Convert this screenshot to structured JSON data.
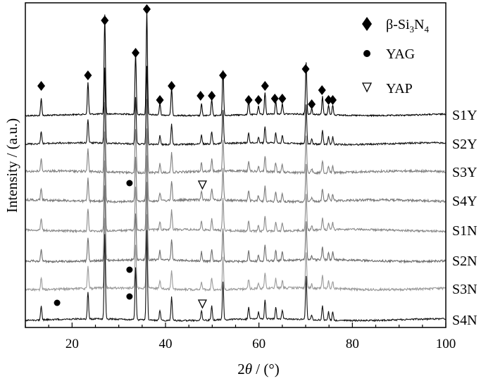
{
  "chart_data": {
    "type": "line",
    "title": "",
    "xlabel_parts": [
      "2",
      "θ",
      " / (°)"
    ],
    "ylabel": "Intensity / (a.u.)",
    "xlim": [
      10,
      100
    ],
    "xticks": [
      20,
      40,
      60,
      80,
      100
    ],
    "grid": false,
    "legend_position": "top-right",
    "legend": [
      {
        "symbol": "diamond",
        "label_parts": [
          "β-Si",
          "3",
          "N",
          "4"
        ]
      },
      {
        "symbol": "circle",
        "label_parts": [
          "YAG"
        ]
      },
      {
        "symbol": "triangle-down-open",
        "label_parts": [
          "YAP"
        ]
      }
    ],
    "peak_positions_2theta": [
      13.4,
      23.4,
      27.0,
      33.6,
      36.0,
      38.8,
      41.3,
      47.7,
      49.9,
      52.3,
      57.8,
      59.9,
      61.3,
      63.6,
      65.0,
      70.1,
      71.3,
      73.6,
      74.9,
      75.8
    ],
    "peak_relative_intensity": [
      0.17,
      0.32,
      1.0,
      0.62,
      1.05,
      0.12,
      0.28,
      0.12,
      0.17,
      0.45,
      0.14,
      0.08,
      0.22,
      0.14,
      0.11,
      0.52,
      0.06,
      0.18,
      0.1,
      0.1
    ],
    "series": [
      {
        "name": "S1Y",
        "color": "#000000",
        "peak_scale": 1.0,
        "noise": 0.6
      },
      {
        "name": "S2Y",
        "color": "#111111",
        "peak_scale": 0.75,
        "noise": 0.7
      },
      {
        "name": "S3Y",
        "color": "#808080",
        "peak_scale": 0.7,
        "noise": 1.0
      },
      {
        "name": "S4Y",
        "color": "#7a7a7a",
        "peak_scale": 0.7,
        "noise": 1.0
      },
      {
        "name": "S1N",
        "color": "#8a8a8a",
        "peak_scale": 0.7,
        "noise": 0.9
      },
      {
        "name": "S2N",
        "color": "#6e6e6e",
        "peak_scale": 0.75,
        "noise": 0.9
      },
      {
        "name": "S3N",
        "color": "#9a9a9a",
        "peak_scale": 0.7,
        "noise": 1.0
      },
      {
        "name": "S4N",
        "color": "#111111",
        "peak_scale": 0.85,
        "noise": 0.7
      }
    ],
    "diamond_markers_2theta": [
      13.4,
      23.4,
      27.0,
      33.6,
      36.0,
      38.8,
      41.3,
      47.5,
      49.9,
      52.3,
      57.8,
      59.9,
      61.3,
      63.4,
      65.0,
      70.0,
      71.3,
      73.5,
      74.9,
      75.8
    ],
    "yag_markers": [
      {
        "series": "S4Y",
        "x": 32.3
      },
      {
        "series": "S3N",
        "x": 32.3
      },
      {
        "series": "S4N",
        "x": 32.3
      },
      {
        "series": "S4N",
        "x": 16.8
      }
    ],
    "yap_markers": [
      {
        "series": "S4Y",
        "x": 47.9
      },
      {
        "series": "S4N",
        "x": 47.9
      }
    ]
  }
}
